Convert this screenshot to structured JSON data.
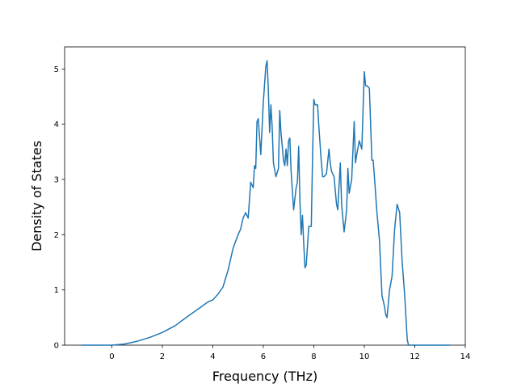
{
  "chart_data": {
    "type": "line",
    "title": "",
    "xlabel": "Frequency (THz)",
    "ylabel": "Density of States",
    "xlim": [
      -1.87,
      14.0
    ],
    "ylim": [
      0,
      5.4
    ],
    "xticks": [
      0,
      2,
      4,
      6,
      8,
      10,
      12,
      14
    ],
    "xtick_labels": [
      "0",
      "2",
      "4",
      "6",
      "8",
      "10",
      "12",
      "14"
    ],
    "yticks": [
      0,
      1,
      2,
      3,
      4,
      5
    ],
    "ytick_labels": [
      "0",
      "1",
      "2",
      "3",
      "4",
      "5"
    ],
    "grid": false,
    "series": [
      {
        "color": "#1f77b4",
        "x": [
          -1.2,
          -0.5,
          0,
          0.5,
          1,
          1.5,
          2,
          2.5,
          3,
          3.5,
          3.8,
          4,
          4.2,
          4.4,
          4.6,
          4.8,
          5.0,
          5.1,
          5.2,
          5.3,
          5.4,
          5.5,
          5.6,
          5.65,
          5.7,
          5.75,
          5.8,
          5.9,
          6.0,
          6.1,
          6.15,
          6.2,
          6.25,
          6.3,
          6.35,
          6.4,
          6.5,
          6.6,
          6.65,
          6.7,
          6.8,
          6.85,
          6.9,
          6.95,
          7.0,
          7.05,
          7.1,
          7.2,
          7.3,
          7.35,
          7.4,
          7.45,
          7.5,
          7.55,
          7.6,
          7.65,
          7.7,
          7.8,
          7.9,
          7.95,
          8.0,
          8.05,
          8.1,
          8.15,
          8.2,
          8.3,
          8.35,
          8.4,
          8.5,
          8.6,
          8.65,
          8.7,
          8.8,
          8.9,
          8.95,
          9.0,
          9.05,
          9.1,
          9.2,
          9.3,
          9.35,
          9.4,
          9.5,
          9.6,
          9.65,
          9.7,
          9.8,
          9.9,
          10.0,
          10.05,
          10.1,
          10.2,
          10.3,
          10.35,
          10.4,
          10.5,
          10.6,
          10.65,
          10.7,
          10.8,
          10.85,
          10.9,
          11.0,
          11.1,
          11.2,
          11.3,
          11.4,
          11.5,
          11.6,
          11.7,
          11.75,
          11.8,
          11.85,
          11.9,
          12.0,
          12.05,
          12.1,
          12.2,
          13.4
        ],
        "y": [
          0,
          0,
          0,
          0.02,
          0.07,
          0.14,
          0.23,
          0.35,
          0.52,
          0.68,
          0.78,
          0.82,
          0.92,
          1.05,
          1.35,
          1.75,
          2.0,
          2.1,
          2.3,
          2.4,
          2.3,
          2.95,
          2.85,
          3.25,
          3.2,
          4.05,
          4.1,
          3.45,
          4.4,
          5.05,
          5.15,
          4.6,
          3.85,
          4.35,
          3.95,
          3.3,
          3.05,
          3.2,
          4.25,
          3.85,
          3.35,
          3.25,
          3.55,
          3.25,
          3.7,
          3.75,
          3.15,
          2.45,
          2.85,
          2.95,
          3.6,
          2.6,
          2.0,
          2.35,
          1.85,
          1.4,
          1.45,
          2.15,
          2.15,
          3.4,
          4.45,
          4.35,
          4.35,
          4.35,
          3.95,
          3.3,
          3.05,
          3.05,
          3.1,
          3.55,
          3.3,
          3.15,
          3.05,
          2.55,
          2.45,
          2.9,
          3.3,
          2.55,
          2.05,
          2.45,
          3.2,
          2.75,
          3.0,
          4.05,
          3.3,
          3.45,
          3.7,
          3.55,
          4.95,
          4.7,
          4.7,
          4.65,
          3.35,
          3.35,
          3.05,
          2.4,
          1.9,
          1.4,
          0.9,
          0.7,
          0.55,
          0.5,
          1.0,
          1.25,
          2.1,
          2.55,
          2.4,
          1.5,
          0.9,
          0.1,
          0,
          0,
          0,
          0,
          0,
          0,
          0,
          0,
          0
        ]
      }
    ]
  }
}
